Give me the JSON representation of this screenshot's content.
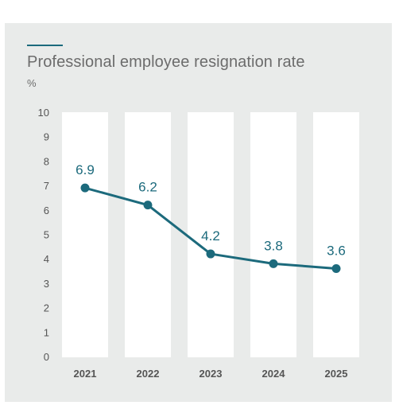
{
  "title": "Professional employee resignation rate",
  "unit": "%",
  "colors": {
    "series": "#1c6a7c",
    "column": "#ffffff",
    "background": "#e9ebea",
    "text": "#6c6c6c"
  },
  "chart_data": {
    "type": "line",
    "title": "Professional employee resignation rate",
    "ylabel": "%",
    "xlabel": "",
    "categories": [
      "2021",
      "2022",
      "2023",
      "2024",
      "2025"
    ],
    "series": [
      {
        "values": [
          6.9,
          6.2,
          4.2,
          3.8,
          3.6
        ]
      }
    ],
    "data_labels": [
      "6.9",
      "6.2",
      "4.2",
      "3.8",
      "3.6"
    ],
    "ylim": [
      0,
      10
    ],
    "yticks": [
      "0",
      "1",
      "2",
      "3",
      "4",
      "5",
      "6",
      "7",
      "8",
      "9",
      "10"
    ],
    "grid": false,
    "legend": "none"
  }
}
